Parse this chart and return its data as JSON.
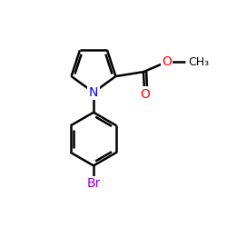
{
  "background_color": "#ffffff",
  "bond_color": "#000000",
  "bond_width": 1.8,
  "N_color": "#0000ff",
  "O_color": "#ff0000",
  "Br_color": "#9400d3",
  "font_size_atoms": 10,
  "font_size_CH3": 9,
  "figsize": [
    2.5,
    2.5
  ],
  "dpi": 100,
  "xlim": [
    0,
    10
  ],
  "ylim": [
    0,
    10
  ]
}
